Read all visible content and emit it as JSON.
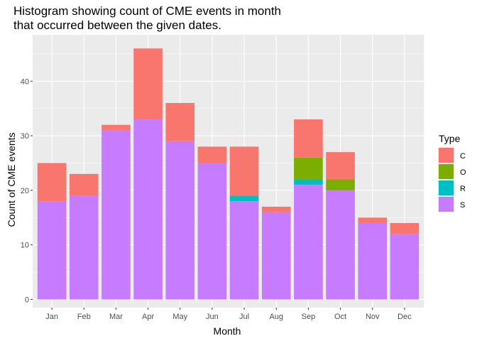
{
  "chart_data": {
    "type": "bar",
    "stacked": true,
    "title_lines": [
      "Histogram showing count of CME events in month",
      "that occurred between the given dates."
    ],
    "xlabel": "Month",
    "ylabel": "Count of CME events",
    "categories": [
      "Jan",
      "Feb",
      "Mar",
      "Apr",
      "May",
      "Jun",
      "Jul",
      "Aug",
      "Sep",
      "Oct",
      "Nov",
      "Dec"
    ],
    "yticks": [
      0,
      10,
      20,
      30,
      40
    ],
    "ylim": [
      -1.5,
      48.5
    ],
    "legend_title": "Type",
    "legend_position": "right",
    "grid": true,
    "series": [
      {
        "name": "S",
        "color": "#C77CFF",
        "values": [
          18,
          19,
          31,
          33,
          29,
          25,
          18,
          16,
          21,
          20,
          14,
          12
        ]
      },
      {
        "name": "R",
        "color": "#00BFC4",
        "values": [
          0,
          0,
          0,
          0,
          0,
          0,
          1,
          0,
          1,
          0,
          0,
          0
        ]
      },
      {
        "name": "O",
        "color": "#7CAE00",
        "values": [
          0,
          0,
          0,
          0,
          0,
          0,
          0,
          0,
          4,
          2,
          0,
          0
        ]
      },
      {
        "name": "C",
        "color": "#F8766D",
        "values": [
          7,
          4,
          1,
          13,
          7,
          3,
          9,
          1,
          7,
          5,
          1,
          2
        ]
      }
    ],
    "legend_order": [
      "C",
      "O",
      "R",
      "S"
    ],
    "panel_background": "#EBEBEB",
    "grid_color": "#FFFFFF"
  }
}
